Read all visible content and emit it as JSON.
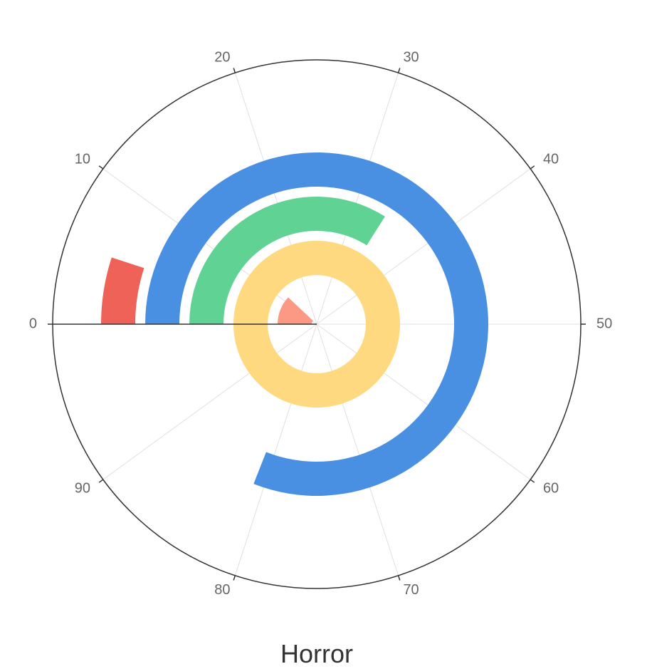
{
  "chart_data": {
    "type": "polar-bar",
    "title": "Horror",
    "angle_axis": {
      "min": 0,
      "max": 100,
      "tick_labels": [
        "0",
        "10",
        "20",
        "30",
        "40",
        "50",
        "60",
        "70",
        "80",
        "90"
      ],
      "clockwise": true,
      "start": "left"
    },
    "grid": true,
    "legend": "none",
    "series": [
      {
        "ring": 1,
        "start": 0,
        "end": 12,
        "color": "#fc9985"
      },
      {
        "ring": 2,
        "start": 0,
        "end": 100,
        "color": "#fed97f"
      },
      {
        "ring": 3,
        "start": 0,
        "end": 34,
        "color": "#60d394"
      },
      {
        "ring": 4,
        "start": 0,
        "end": 81,
        "color": "#4a90e2"
      },
      {
        "ring": 5,
        "start": 0,
        "end": 5,
        "color": "#ef6257"
      }
    ]
  },
  "colors": {
    "axis": "#333333",
    "grid": "#e0e0e0",
    "tick_text": "#666666",
    "title_text": "#333333"
  }
}
